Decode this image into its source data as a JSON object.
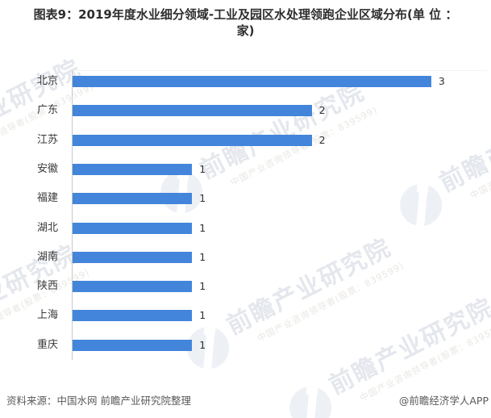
{
  "title": {
    "line1": "图表9：2019年度水业细分领域-工业及园区水处理领跑企业区域分布(单 位 ：",
    "line2": "家)"
  },
  "chart_data": {
    "type": "bar",
    "orientation": "horizontal",
    "title": "图表9：2019年度水业细分领域-工业及园区水处理领跑企业区域分布(单 位 ：家)",
    "unit": "家",
    "categories": [
      "北京",
      "广东",
      "江苏",
      "安徽",
      "福建",
      "湖北",
      "湖南",
      "陕西",
      "上海",
      "重庆"
    ],
    "values": [
      3,
      2,
      2,
      1,
      1,
      1,
      1,
      1,
      1,
      1
    ],
    "xlabel": "",
    "ylabel": "",
    "xlim": [
      0,
      3.5
    ],
    "grid": false,
    "data_labels": true,
    "legend": "none",
    "bar_color": "#4285db"
  },
  "watermark": {
    "big_text": "前瞻产业研究院",
    "small_text": "中国产业咨询领导者(股票：839599)"
  },
  "footer": {
    "source": "资料来源：中国水网 前瞻产业研究院整理",
    "credit": "@前瞻经济学人APP"
  }
}
